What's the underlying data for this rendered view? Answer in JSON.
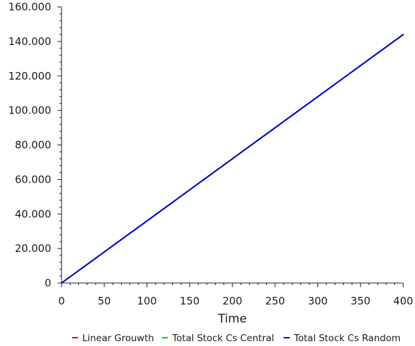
{
  "chart_data": {
    "type": "line",
    "title": "",
    "xlabel": "Time",
    "ylabel": "",
    "xlim": [
      0,
      400
    ],
    "ylim": [
      0,
      160000
    ],
    "x_ticks": [
      0,
      50,
      100,
      150,
      200,
      250,
      300,
      350,
      400
    ],
    "x_tick_labels": [
      "0",
      "50",
      "100",
      "150",
      "200",
      "250",
      "300",
      "350",
      "400"
    ],
    "y_ticks": [
      0,
      20000,
      40000,
      60000,
      80000,
      100000,
      120000,
      140000,
      160000
    ],
    "y_tick_labels": [
      "0",
      "20.000",
      "40.000",
      "60.000",
      "80.000",
      "100.000",
      "120.000",
      "140.000",
      "160.000"
    ],
    "grid": false,
    "legend_position": "bottom",
    "series": [
      {
        "name": "Linear Grouwth",
        "color": "#ff0000",
        "x": [
          0,
          400
        ],
        "y": [
          0,
          144000
        ]
      },
      {
        "name": "Total Stock Cs Central",
        "color": "#00dd00",
        "x": [
          0,
          400
        ],
        "y": [
          0,
          144000
        ]
      },
      {
        "name": "Total Stock Cs Random",
        "color": "#0000dd",
        "x": [
          0,
          400
        ],
        "y": [
          0,
          144000
        ]
      }
    ]
  }
}
